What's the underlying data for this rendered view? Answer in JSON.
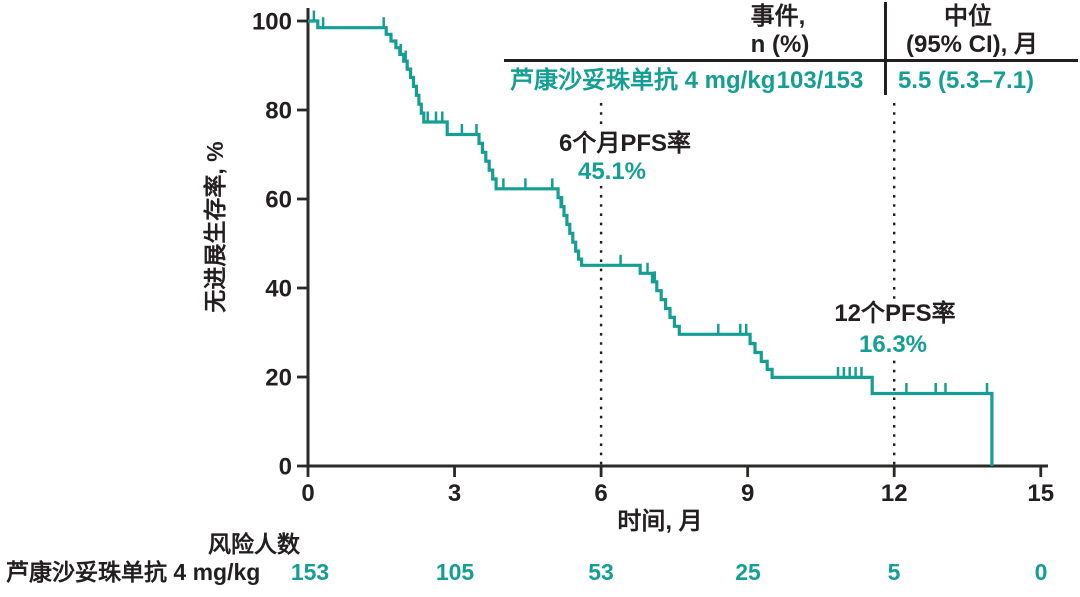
{
  "colors": {
    "accent": "#149e94",
    "text": "#231f20",
    "axis": "#2b2a29"
  },
  "summary_table": {
    "events_header_line1": "事件,",
    "events_header_line2": "n (%)",
    "median_header_line1": "中位",
    "median_header_line2": "(95% CI), 月",
    "row_label": "芦康沙妥珠单抗 4 mg/kg",
    "events_value": "103/153",
    "median_value": "5.5 (5.3–7.1)"
  },
  "risk_table": {
    "title": "风险人数",
    "row_label": "芦康沙妥珠单抗 4 mg/kg",
    "counts": [
      "153",
      "105",
      "53",
      "25",
      "5",
      "0"
    ]
  },
  "chart_data": {
    "type": "line",
    "subtype": "kaplan-meier-step",
    "title": "",
    "xlabel": "时间, 月",
    "ylabel": "无进展生存率, %",
    "xlim": [
      0,
      15
    ],
    "ylim": [
      0,
      100
    ],
    "xticks": [
      0,
      3,
      6,
      9,
      12,
      15
    ],
    "yticks": [
      100,
      80,
      60,
      40,
      20,
      0
    ],
    "grid": false,
    "legend_position": "none",
    "reference_lines": [
      {
        "x": 6,
        "style": "dotted"
      },
      {
        "x": 12,
        "style": "dotted"
      }
    ],
    "annotations": [
      {
        "label": "6个月PFS率",
        "value": "45.1%",
        "month": 6
      },
      {
        "label": "12个PFS率",
        "value": "16.3%",
        "month": 12
      }
    ],
    "series": [
      {
        "name": "芦康沙妥珠单抗 4 mg/kg",
        "color": "#149e94",
        "events": "103/153",
        "median_95ci_months": "5.5 (5.3–7.1)",
        "pfs_rate_6mo_pct": 45.1,
        "pfs_rate_12mo_pct": 16.3,
        "steps": [
          [
            0,
            100
          ],
          [
            0.2,
            98.5
          ],
          [
            1.6,
            97
          ],
          [
            1.7,
            95.5
          ],
          [
            1.8,
            94
          ],
          [
            1.88,
            92.5
          ],
          [
            1.96,
            91
          ],
          [
            2.03,
            89.2
          ],
          [
            2.1,
            87.3
          ],
          [
            2.16,
            85.3
          ],
          [
            2.22,
            83.3
          ],
          [
            2.27,
            81.3
          ],
          [
            2.32,
            79.3
          ],
          [
            2.37,
            77.3
          ],
          [
            2.85,
            74.5
          ],
          [
            3.5,
            72.5
          ],
          [
            3.57,
            70.5
          ],
          [
            3.64,
            68.5
          ],
          [
            3.71,
            66.5
          ],
          [
            3.78,
            64.5
          ],
          [
            3.85,
            62.3
          ],
          [
            5.12,
            60.3
          ],
          [
            5.18,
            58.3
          ],
          [
            5.24,
            56.3
          ],
          [
            5.3,
            54.3
          ],
          [
            5.36,
            52.3
          ],
          [
            5.42,
            50.3
          ],
          [
            5.48,
            48.3
          ],
          [
            5.54,
            46.5
          ],
          [
            5.6,
            45.1
          ],
          [
            6.8,
            43.3
          ],
          [
            7.05,
            41.4
          ],
          [
            7.14,
            39.4
          ],
          [
            7.23,
            37.4
          ],
          [
            7.32,
            35.4
          ],
          [
            7.41,
            33.4
          ],
          [
            7.5,
            31.4
          ],
          [
            7.6,
            29.6
          ],
          [
            9.05,
            27.5
          ],
          [
            9.15,
            25.5
          ],
          [
            9.28,
            23.5
          ],
          [
            9.4,
            21.7
          ],
          [
            9.5,
            19.9
          ],
          [
            11.55,
            16.3
          ],
          [
            14,
            0
          ]
        ],
        "censor_ticks": [
          0.12,
          0.31,
          1.55,
          1.9,
          2.0,
          2.45,
          2.62,
          2.75,
          3.15,
          3.45,
          4.0,
          4.45,
          5.0,
          5.2,
          6.4,
          6.95,
          7.1,
          8.4,
          8.85,
          8.97,
          10.85,
          10.97,
          11.09,
          11.21,
          11.33,
          12.25,
          12.85,
          13.05,
          13.9
        ]
      }
    ]
  }
}
